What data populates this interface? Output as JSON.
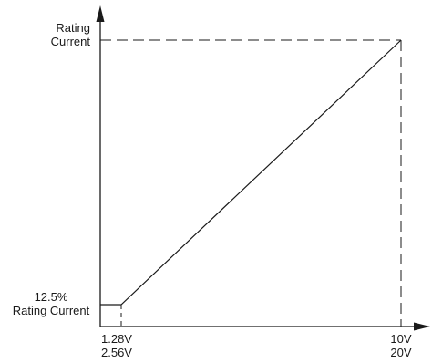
{
  "y_labels": {
    "top_line1": "Rating",
    "top_line2": "Current",
    "bottom_line1": "12.5%",
    "bottom_line2": "Rating Current"
  },
  "x_labels": {
    "left_line1": "1.28V",
    "left_line2": "2.56V",
    "right_line1": "10V",
    "right_line2": "20V"
  },
  "colors": {
    "line": "#1a1a1a"
  }
}
